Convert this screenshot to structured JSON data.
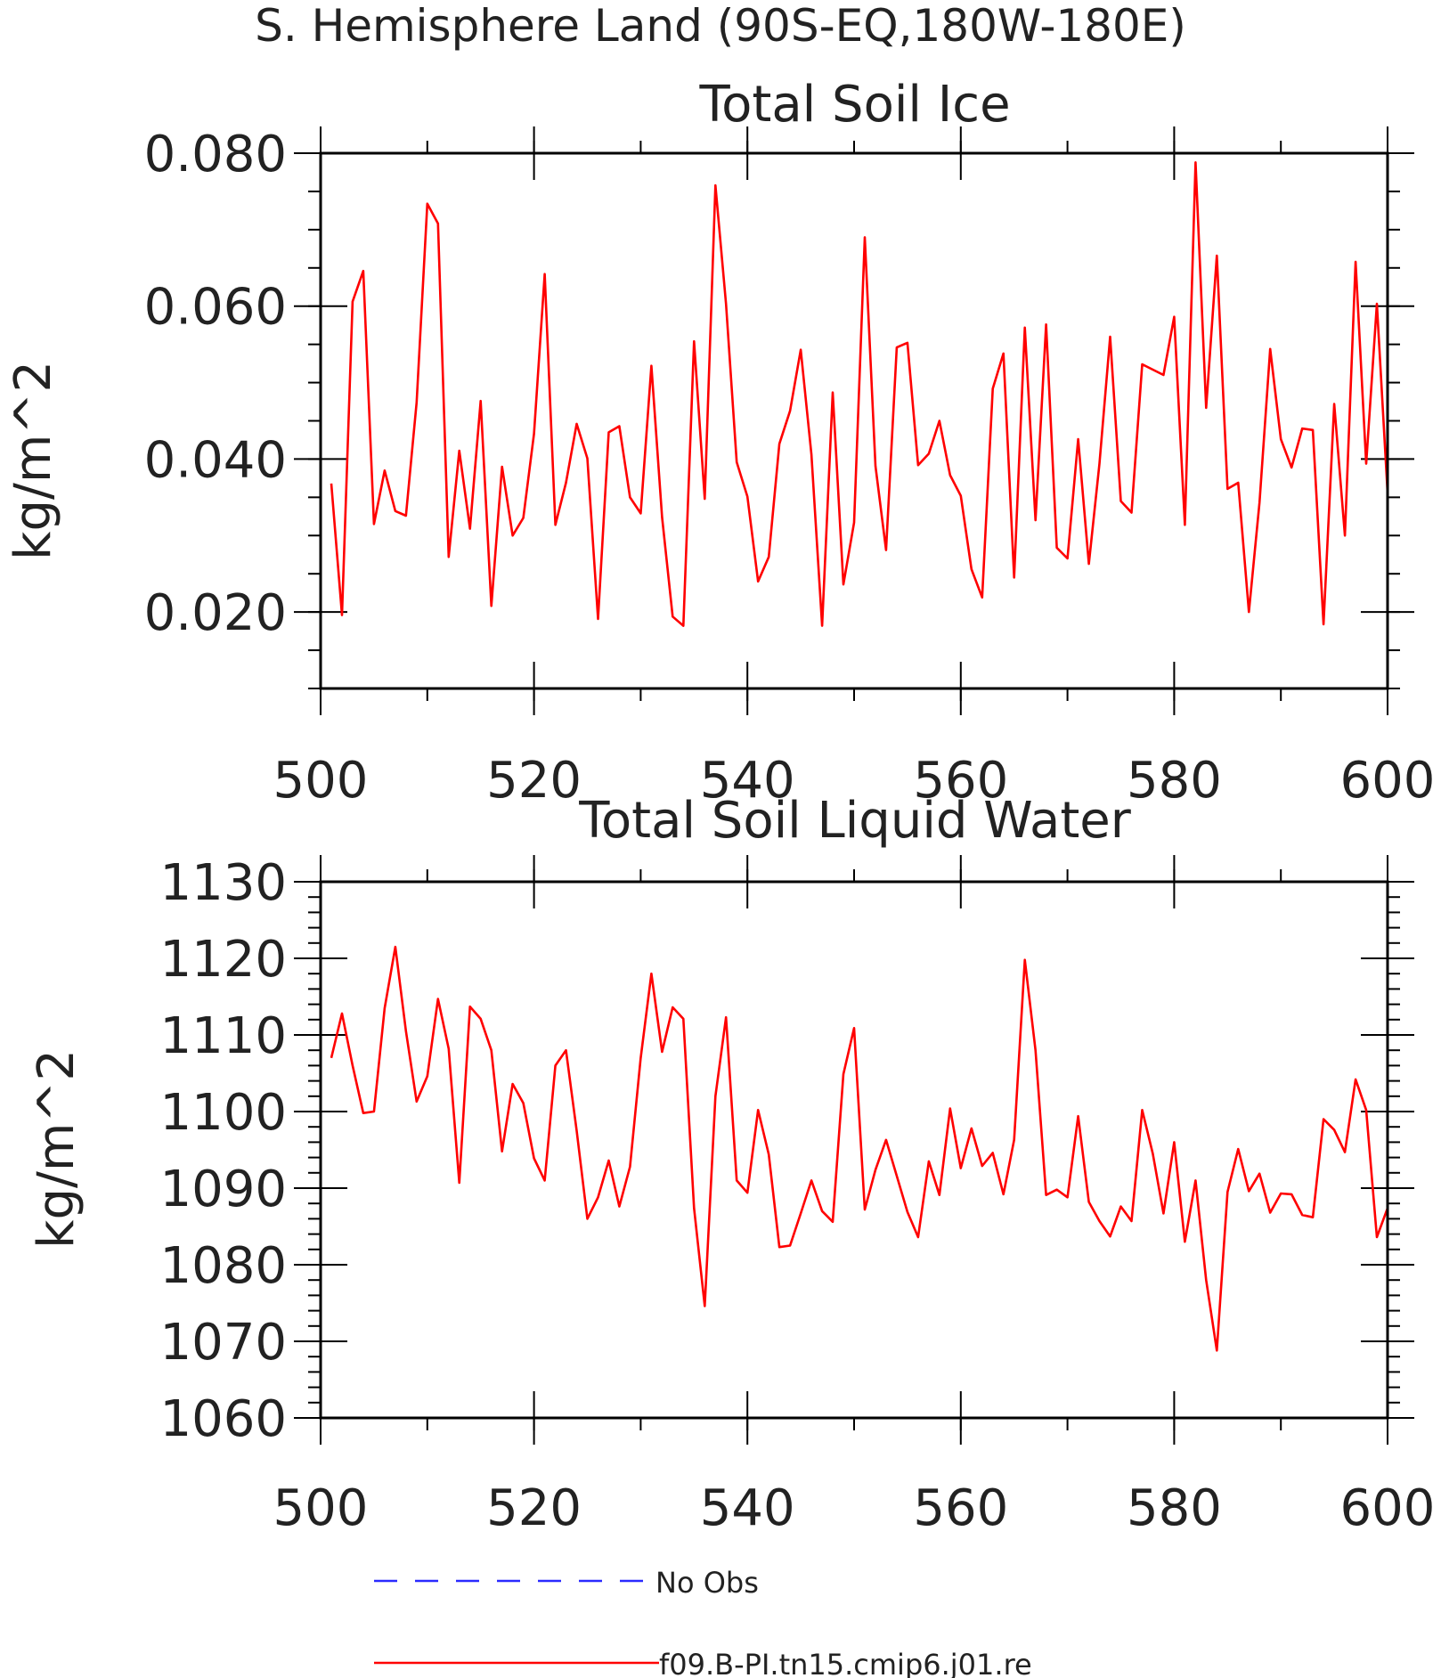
{
  "figure_title": "S. Hemisphere Land (90S-EQ,180W-180E)",
  "colors": {
    "model": "#ff0000",
    "obs": "#2a2aff",
    "axes": "#000000"
  },
  "legend": {
    "obs_label": "No Obs",
    "model_label": "f09.B-PI.tn15.cmip6.j01.re"
  },
  "chart_data": [
    {
      "type": "line",
      "title": "Total Soil Ice",
      "ylabel": "kg/m^2",
      "xlabel": "",
      "xlim": [
        500,
        600
      ],
      "ylim": [
        0.01,
        0.08
      ],
      "xticks": [
        500,
        520,
        540,
        560,
        580,
        600
      ],
      "xtick_labels": [
        "500",
        "520",
        "540",
        "560",
        "580",
        "600"
      ],
      "yticks": [
        0.02,
        0.04,
        0.06,
        0.08
      ],
      "ytick_labels": [
        "0.020",
        "0.040",
        "0.060",
        "0.080"
      ],
      "yminor_step": 0.005,
      "xminor_step": 10,
      "grid": false,
      "series": [
        {
          "name": "f09.B-PI.tn15.cmip6.j01.re",
          "x_start": 501,
          "x_step": 1,
          "values": [
            0.0368,
            0.0196,
            0.0606,
            0.0646,
            0.0315,
            0.0385,
            0.0332,
            0.0326,
            0.0474,
            0.0734,
            0.0708,
            0.0272,
            0.0411,
            0.0309,
            0.0476,
            0.0208,
            0.039,
            0.03,
            0.0323,
            0.0433,
            0.0642,
            0.0314,
            0.0369,
            0.0446,
            0.0401,
            0.0191,
            0.0435,
            0.0443,
            0.035,
            0.0329,
            0.0522,
            0.0324,
            0.0194,
            0.0182,
            0.0554,
            0.0348,
            0.0758,
            0.0603,
            0.0396,
            0.0351,
            0.024,
            0.0272,
            0.042,
            0.0463,
            0.0543,
            0.0406,
            0.0182,
            0.0487,
            0.0236,
            0.0317,
            0.069,
            0.0391,
            0.0281,
            0.0546,
            0.0552,
            0.0392,
            0.0407,
            0.045,
            0.0379,
            0.0352,
            0.0256,
            0.0219,
            0.0492,
            0.0538,
            0.0245,
            0.0572,
            0.032,
            0.0576,
            0.0284,
            0.027,
            0.0426,
            0.0263,
            0.0394,
            0.056,
            0.0345,
            0.033,
            0.0524,
            0.0517,
            0.051,
            0.0586,
            0.0314,
            0.0788,
            0.0467,
            0.0666,
            0.0361,
            0.0369,
            0.02,
            0.0343,
            0.0544,
            0.0426,
            0.0389,
            0.044,
            0.0438,
            0.0184,
            0.0472,
            0.03,
            0.0658,
            0.0394,
            0.0603,
            0.0356
          ]
        }
      ]
    },
    {
      "type": "line",
      "title": "Total Soil Liquid Water",
      "ylabel": "kg/m^2",
      "xlabel": "",
      "xlim": [
        500,
        600
      ],
      "ylim": [
        1060,
        1130
      ],
      "xticks": [
        500,
        520,
        540,
        560,
        580,
        600
      ],
      "xtick_labels": [
        "500",
        "520",
        "540",
        "560",
        "580",
        "600"
      ],
      "yticks": [
        1060,
        1070,
        1080,
        1090,
        1100,
        1110,
        1120,
        1130
      ],
      "ytick_labels": [
        "1060",
        "1070",
        "1080",
        "1090",
        "1100",
        "1110",
        "1120",
        "1130"
      ],
      "yminor_step": 2,
      "xminor_step": 10,
      "grid": false,
      "series": [
        {
          "name": "f09.B-PI.tn15.cmip6.j01.re",
          "x_start": 501,
          "x_step": 1,
          "values": [
            1107.0,
            1112.8,
            1106.0,
            1099.8,
            1100.0,
            1113.5,
            1121.5,
            1110.5,
            1101.3,
            1104.6,
            1114.7,
            1108.2,
            1090.7,
            1113.7,
            1112.1,
            1108.0,
            1094.8,
            1103.6,
            1101.1,
            1093.9,
            1091.0,
            1106.0,
            1108.0,
            1097.5,
            1086.0,
            1088.8,
            1093.6,
            1087.6,
            1092.8,
            1107.0,
            1118.0,
            1107.8,
            1113.6,
            1112.1,
            1087.4,
            1074.6,
            1102.0,
            1112.3,
            1091.0,
            1089.4,
            1100.2,
            1094.4,
            1082.3,
            1082.5,
            1086.7,
            1091.0,
            1087.0,
            1085.6,
            1104.9,
            1110.9,
            1087.2,
            1092.4,
            1096.3,
            1091.6,
            1086.9,
            1083.6,
            1093.5,
            1089.1,
            1100.4,
            1092.6,
            1097.8,
            1092.9,
            1094.6,
            1089.2,
            1096.3,
            1119.8,
            1108.0,
            1089.1,
            1089.8,
            1088.8,
            1099.4,
            1088.2,
            1085.7,
            1083.7,
            1087.6,
            1085.7,
            1100.2,
            1094.5,
            1086.7,
            1096.0,
            1083.0,
            1091.0,
            1078.0,
            1068.8,
            1089.5,
            1095.1,
            1089.6,
            1091.9,
            1086.8,
            1089.3,
            1089.2,
            1086.5,
            1086.2,
            1099.0,
            1097.6,
            1094.7,
            1104.2,
            1100.2,
            1083.6,
            1087.4
          ]
        }
      ]
    }
  ]
}
